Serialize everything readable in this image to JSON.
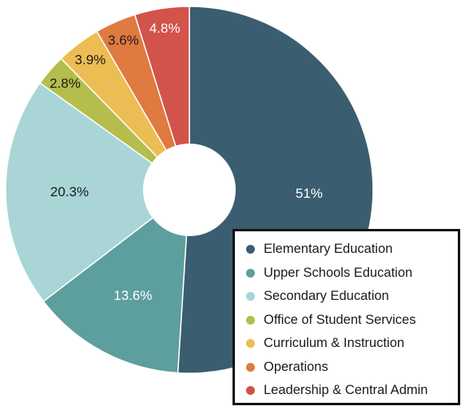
{
  "chart_data": {
    "type": "pie",
    "title": "",
    "legend_position": "bottom-right",
    "slices": [
      {
        "name": "Elementary Education",
        "value": 51,
        "label": "51%",
        "color": "#3a5d70",
        "label_color": "#ffffff"
      },
      {
        "name": "Upper Schools Education",
        "value": 13.6,
        "label": "13.6%",
        "color": "#5d9e9e",
        "label_color": "#ffffff"
      },
      {
        "name": "Secondary Education",
        "value": 20.3,
        "label": "20.3%",
        "color": "#a9d5d6",
        "label_color": "#1a1a1a"
      },
      {
        "name": "Office of Student Services",
        "value": 2.8,
        "label": "2.8%",
        "color": "#b5be4c",
        "label_color": "#1a1a1a"
      },
      {
        "name": "Curriculum & Instruction",
        "value": 3.9,
        "label": "3.9%",
        "color": "#ecbd52",
        "label_color": "#1a1a1a"
      },
      {
        "name": "Operations",
        "value": 3.6,
        "label": "3.6%",
        "color": "#df7a40",
        "label_color": "#1a1a1a"
      },
      {
        "name": "Leadership & Central Admin",
        "value": 4.8,
        "label": "4.8%",
        "color": "#d1534a",
        "label_color": "#ffffff"
      }
    ]
  }
}
